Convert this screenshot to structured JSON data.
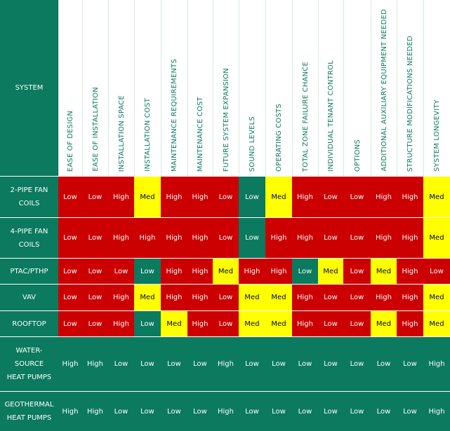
{
  "table": {
    "corner": "SYSTEM",
    "columns": [
      "EASE OF DESIGN",
      "EASE OF INSTALLATION",
      "INSTALLATION SPACE",
      "INSTALLATION COST",
      "MAINTENANCE REQUIREMENTS",
      "MAINTENANCE COST",
      "FUTURE SYSTEM EXPANSION",
      "SOUND LEVELS",
      "OPERATING COSTS",
      "TOTAL ZONE FAILURE CHANCE",
      "INDIVIDUAL TENANT CONTROL",
      "OPTIONS",
      "ADDITIONAL AUXILIARY EQUIPMENT NEEDED",
      "STRUCTURE MODIFICATIONS NEEDED",
      "SYSTEM LONGEVITY"
    ],
    "rows": [
      {
        "system": "2-PIPE FAN COILS",
        "cells": [
          "Low",
          "Low",
          "High",
          "Med",
          "High",
          "High",
          "Low",
          "Low",
          "Med",
          "High",
          "Low",
          "Low",
          "High",
          "High",
          "Med"
        ],
        "colors": [
          "#cc0000",
          "#cc0000",
          "#cc0000",
          "#ffff00",
          "#cc0000",
          "#cc0000",
          "#cc0000",
          "#0b7a5f",
          "#ffff00",
          "#cc0000",
          "#cc0000",
          "#cc0000",
          "#cc0000",
          "#cc0000",
          "#ffff00"
        ]
      },
      {
        "system": "4-PIPE FAN COILS",
        "cells": [
          "Low",
          "Low",
          "High",
          "High",
          "High",
          "High",
          "Low",
          "Low",
          "High",
          "High",
          "Low",
          "Low",
          "High",
          "High",
          "Med"
        ],
        "colors": [
          "#cc0000",
          "#cc0000",
          "#cc0000",
          "#cc0000",
          "#cc0000",
          "#cc0000",
          "#cc0000",
          "#0b7a5f",
          "#cc0000",
          "#cc0000",
          "#cc0000",
          "#cc0000",
          "#cc0000",
          "#cc0000",
          "#ffff00"
        ]
      },
      {
        "system": "PTAC/PTHP",
        "cells": [
          "Low",
          "Low",
          "Low",
          "Low",
          "High",
          "High",
          "Med",
          "High",
          "High",
          "Low",
          "Med",
          "Low",
          "Med",
          "High",
          "Low"
        ],
        "colors": [
          "#cc0000",
          "#cc0000",
          "#cc0000",
          "#0b7a5f",
          "#cc0000",
          "#cc0000",
          "#ffff00",
          "#cc0000",
          "#cc0000",
          "#0b7a5f",
          "#ffff00",
          "#cc0000",
          "#ffff00",
          "#cc0000",
          "#cc0000"
        ]
      },
      {
        "system": "VAV",
        "cells": [
          "Low",
          "Low",
          "High",
          "Med",
          "High",
          "High",
          "Low",
          "Med",
          "Med",
          "High",
          "Low",
          "Low",
          "High",
          "High",
          "Med"
        ],
        "colors": [
          "#cc0000",
          "#cc0000",
          "#cc0000",
          "#ffff00",
          "#cc0000",
          "#cc0000",
          "#cc0000",
          "#ffff00",
          "#ffff00",
          "#cc0000",
          "#cc0000",
          "#cc0000",
          "#cc0000",
          "#cc0000",
          "#ffff00"
        ]
      },
      {
        "system": "ROOFTOP",
        "cells": [
          "Low",
          "Low",
          "High",
          "Low",
          "Med",
          "High",
          "Low",
          "Med",
          "Med",
          "High",
          "Low",
          "Low",
          "Med",
          "High",
          "Med"
        ],
        "colors": [
          "#cc0000",
          "#cc0000",
          "#cc0000",
          "#0b7a5f",
          "#ffff00",
          "#cc0000",
          "#cc0000",
          "#ffff00",
          "#ffff00",
          "#cc0000",
          "#cc0000",
          "#cc0000",
          "#ffff00",
          "#cc0000",
          "#ffff00"
        ]
      },
      {
        "system": "WATER-SOURCE HEAT PUMPS",
        "cells": [
          "High",
          "High",
          "Low",
          "Low",
          "Low",
          "Low",
          "High",
          "Low",
          "Low",
          "Low",
          "Low",
          "Low",
          "Low",
          "Low",
          "High"
        ],
        "colors": [
          "#0b7a5f",
          "#0b7a5f",
          "#0b7a5f",
          "#0b7a5f",
          "#0b7a5f",
          "#0b7a5f",
          "#0b7a5f",
          "#0b7a5f",
          "#0b7a5f",
          "#0b7a5f",
          "#0b7a5f",
          "#0b7a5f",
          "#0b7a5f",
          "#0b7a5f",
          "#0b7a5f"
        ]
      },
      {
        "system": "GEOTHERMAL HEAT PUMPS",
        "cells": [
          "High",
          "High",
          "Low",
          "Low",
          "Low",
          "Low",
          "High",
          "Low",
          "Low",
          "Low",
          "Low",
          "Low",
          "Low",
          "Low",
          "High"
        ],
        "colors": [
          "#0b7a5f",
          "#0b7a5f",
          "#0b7a5f",
          "#0b7a5f",
          "#0b7a5f",
          "#0b7a5f",
          "#0b7a5f",
          "#0b7a5f",
          "#0b7a5f",
          "#0b7a5f",
          "#0b7a5f",
          "#0b7a5f",
          "#0b7a5f",
          "#0b7a5f",
          "#0b7a5f"
        ]
      }
    ]
  }
}
